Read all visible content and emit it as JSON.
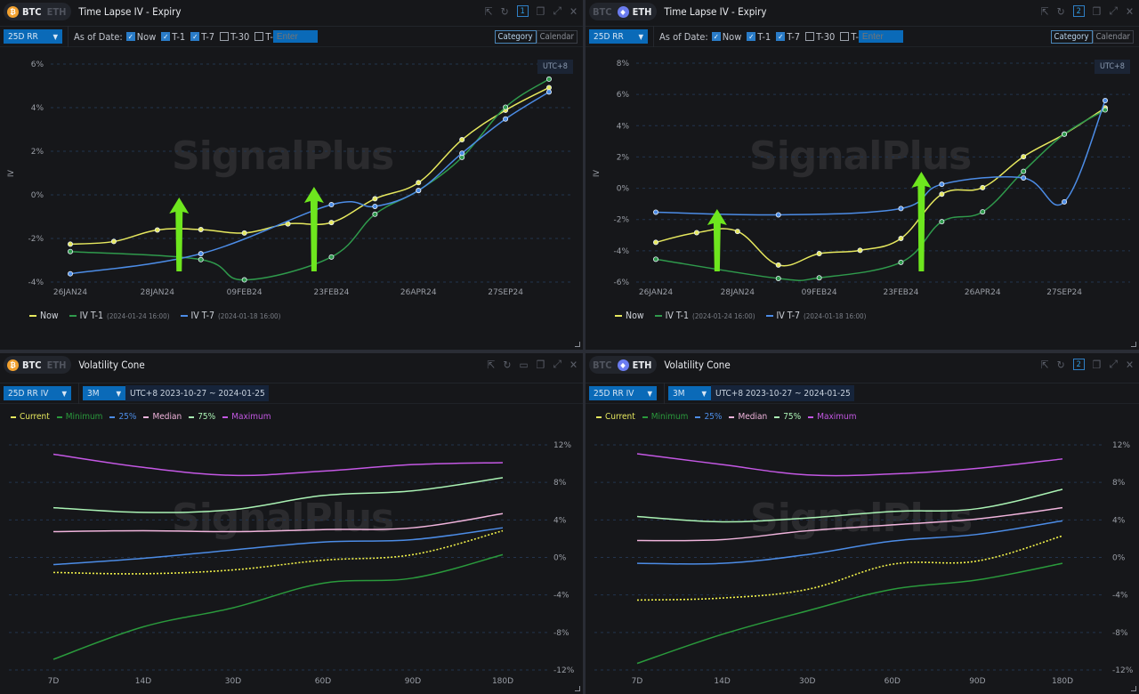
{
  "panels": {
    "btc_timelapse": {
      "coins": [
        "BTC",
        "ETH"
      ],
      "active_coin": "BTC",
      "title": "Time Lapse IV - Expiry",
      "window_number": "1",
      "metric_select": "25D RR",
      "as_of_label": "As of Date:",
      "checks": [
        {
          "label": "Now",
          "checked": true
        },
        {
          "label": "T-1",
          "checked": true
        },
        {
          "label": "T-7",
          "checked": true
        },
        {
          "label": "T-30",
          "checked": false
        },
        {
          "label": "T-",
          "checked": false
        }
      ],
      "enter_placeholder": "Enter",
      "view_toggle": [
        "Category",
        "Calendar"
      ],
      "active_view": "Category",
      "timezone": "UTC+8",
      "watermark": "SignalPlus",
      "y_axis_label": "IV",
      "legend": [
        {
          "label": "Now",
          "note": ""
        },
        {
          "label": "IV T-1",
          "note": "(2024-01-24 16:00)"
        },
        {
          "label": "IV T-7",
          "note": "(2024-01-18 16:00)"
        }
      ]
    },
    "eth_timelapse": {
      "coins": [
        "BTC",
        "ETH"
      ],
      "active_coin": "ETH",
      "title": "Time Lapse IV - Expiry",
      "window_number": "2",
      "metric_select": "25D RR",
      "as_of_label": "As of Date:",
      "checks": [
        {
          "label": "Now",
          "checked": true
        },
        {
          "label": "T-1",
          "checked": true
        },
        {
          "label": "T-7",
          "checked": true
        },
        {
          "label": "T-30",
          "checked": false
        },
        {
          "label": "T-",
          "checked": false
        }
      ],
      "enter_placeholder": "Enter",
      "view_toggle": [
        "Category",
        "Calendar"
      ],
      "active_view": "Category",
      "timezone": "UTC+8",
      "watermark": "SignalPlus",
      "y_axis_label": "IV",
      "legend": [
        {
          "label": "Now",
          "note": ""
        },
        {
          "label": "IV T-1",
          "note": "(2024-01-24 16:00)"
        },
        {
          "label": "IV T-7",
          "note": "(2024-01-18 16:00)"
        }
      ]
    },
    "btc_cone": {
      "coins": [
        "BTC",
        "ETH"
      ],
      "active_coin": "BTC",
      "title": "Volatility Cone",
      "metric_select": "25D RR IV",
      "period_select": "3M",
      "range": "UTC+8 2023-10-27 ~ 2024-01-25",
      "watermark": "SignalPlus",
      "legend": [
        "Current",
        "Minimum",
        "25%",
        "Median",
        "75%",
        "Maximum"
      ]
    },
    "eth_cone": {
      "coins": [
        "BTC",
        "ETH"
      ],
      "active_coin": "ETH",
      "title": "Volatility Cone",
      "window_number": "2",
      "metric_select": "25D RR IV",
      "period_select": "3M",
      "range": "UTC+8 2023-10-27 ~ 2024-01-25",
      "watermark": "SignalPlus",
      "legend": [
        "Current",
        "Minimum",
        "25%",
        "Median",
        "75%",
        "Maximum"
      ]
    }
  },
  "colors": {
    "now": "#e6e85e",
    "t1": "#2f9a4c",
    "t7": "#4c8ce6",
    "current": "#f2f24a",
    "minimum": "#2a9a3c",
    "p25": "#4c8ce6",
    "median": "#f0b4dc",
    "p75": "#aaf2b4",
    "maximum": "#c458e4",
    "accent": "#0a6ab8",
    "arrow": "#6ee61e"
  },
  "chart_data": [
    {
      "type": "line",
      "panel": "btc_timelapse",
      "ylabel": "IV",
      "categories": [
        "26JAN24",
        "",
        "28JAN24",
        "",
        "09FEB24",
        "",
        "23FEB24",
        "",
        "26APR24",
        "",
        "27SEP24",
        ""
      ],
      "yticks": [
        "6%",
        "4%",
        "2%",
        "0%",
        "-2%",
        "-4%"
      ],
      "ylim": [
        -4,
        6
      ],
      "grid": true,
      "legend": "bottom-left",
      "series": [
        {
          "name": "Now",
          "values": [
            -2.26,
            -2.14,
            -1.61,
            -1.59,
            -1.75,
            -1.33,
            -1.27,
            -0.18,
            0.56,
            2.53,
            3.88,
            4.92
          ]
        },
        {
          "name": "IV T-1",
          "values": [
            -2.6,
            null,
            null,
            -2.97,
            -3.9,
            null,
            -2.85,
            -0.89,
            0.2,
            1.72,
            4.02,
            5.31
          ]
        },
        {
          "name": "IV T-7",
          "values": [
            -3.62,
            null,
            null,
            -2.7,
            null,
            null,
            -0.45,
            -0.53,
            0.2,
            1.91,
            3.48,
            4.72
          ]
        }
      ],
      "annotations": [
        {
          "type": "up-arrow",
          "category_index": 2.5
        },
        {
          "type": "up-arrow",
          "category_index": 5.6
        }
      ]
    },
    {
      "type": "line",
      "panel": "eth_timelapse",
      "ylabel": "IV",
      "categories": [
        "26JAN24",
        "",
        "28JAN24",
        "",
        "09FEB24",
        "",
        "23FEB24",
        "",
        "26APR24",
        "",
        "27SEP24",
        ""
      ],
      "yticks": [
        "8%",
        "6%",
        "4%",
        "2%",
        "0%",
        "-2%",
        "-4%",
        "-6%"
      ],
      "ylim": [
        -6,
        8
      ],
      "grid": true,
      "legend": "bottom-left",
      "series": [
        {
          "name": "Now",
          "values": [
            -3.46,
            -2.84,
            -2.76,
            -4.91,
            -4.18,
            -3.97,
            -3.21,
            -0.38,
            0.04,
            2.02,
            3.46,
            5.14
          ]
        },
        {
          "name": "IV T-1",
          "values": [
            -4.54,
            null,
            null,
            -5.77,
            -5.73,
            null,
            -4.74,
            -2.14,
            -1.51,
            1.08,
            3.46,
            5.01
          ]
        },
        {
          "name": "IV T-7",
          "values": [
            -1.53,
            null,
            null,
            -1.7,
            null,
            null,
            -1.3,
            0.25,
            null,
            0.66,
            -0.87,
            5.61
          ]
        }
      ],
      "annotations": [
        {
          "type": "up-arrow",
          "category_index": 1.5
        },
        {
          "type": "up-arrow",
          "category_index": 6.5
        }
      ]
    },
    {
      "type": "line",
      "panel": "btc_cone",
      "categories": [
        "7D",
        "14D",
        "30D",
        "60D",
        "90D",
        "180D"
      ],
      "yticks": [
        "12%",
        "8%",
        "4%",
        "0%",
        "-4%",
        "-8%",
        "-12%"
      ],
      "ylim": [
        -12,
        12
      ],
      "grid": true,
      "legend": "top-left",
      "series": [
        {
          "name": "Current",
          "values": [
            -1.6,
            -1.74,
            -1.33,
            -0.3,
            0.3,
            2.84
          ],
          "dashed": true
        },
        {
          "name": "Minimum",
          "values": [
            -10.86,
            -7.4,
            -5.37,
            -2.75,
            -2.2,
            0.3
          ]
        },
        {
          "name": "25%",
          "values": [
            -0.76,
            -0.1,
            0.8,
            1.64,
            1.9,
            3.16
          ]
        },
        {
          "name": "Median",
          "values": [
            2.75,
            2.85,
            2.75,
            2.97,
            3.16,
            4.67
          ]
        },
        {
          "name": "75%",
          "values": [
            5.3,
            4.8,
            5.1,
            6.6,
            7.1,
            8.5
          ]
        },
        {
          "name": "Maximum",
          "values": [
            11.0,
            9.6,
            8.75,
            9.2,
            9.9,
            10.1
          ]
        }
      ]
    },
    {
      "type": "line",
      "panel": "eth_cone",
      "categories": [
        "7D",
        "14D",
        "30D",
        "60D",
        "90D",
        "180D"
      ],
      "yticks": [
        "12%",
        "8%",
        "4%",
        "0%",
        "-4%",
        "-8%",
        "-12%"
      ],
      "ylim": [
        -12,
        12
      ],
      "grid": true,
      "legend": "top-left",
      "series": [
        {
          "name": "Current",
          "values": [
            -4.55,
            -4.33,
            -3.41,
            -0.73,
            -0.38,
            2.3
          ],
          "dashed": true
        },
        {
          "name": "Minimum",
          "values": [
            -11.3,
            -8.2,
            -5.7,
            -3.4,
            -2.4,
            -0.63
          ]
        },
        {
          "name": "25%",
          "values": [
            -0.63,
            -0.63,
            0.3,
            1.74,
            2.46,
            3.9
          ]
        },
        {
          "name": "Median",
          "values": [
            1.8,
            1.9,
            2.84,
            3.47,
            4.1,
            5.3
          ]
        },
        {
          "name": "75%",
          "values": [
            4.36,
            3.8,
            4.2,
            4.9,
            5.2,
            7.26
          ]
        },
        {
          "name": "Maximum",
          "values": [
            11.05,
            9.9,
            8.8,
            8.9,
            9.5,
            10.5
          ]
        }
      ]
    }
  ]
}
